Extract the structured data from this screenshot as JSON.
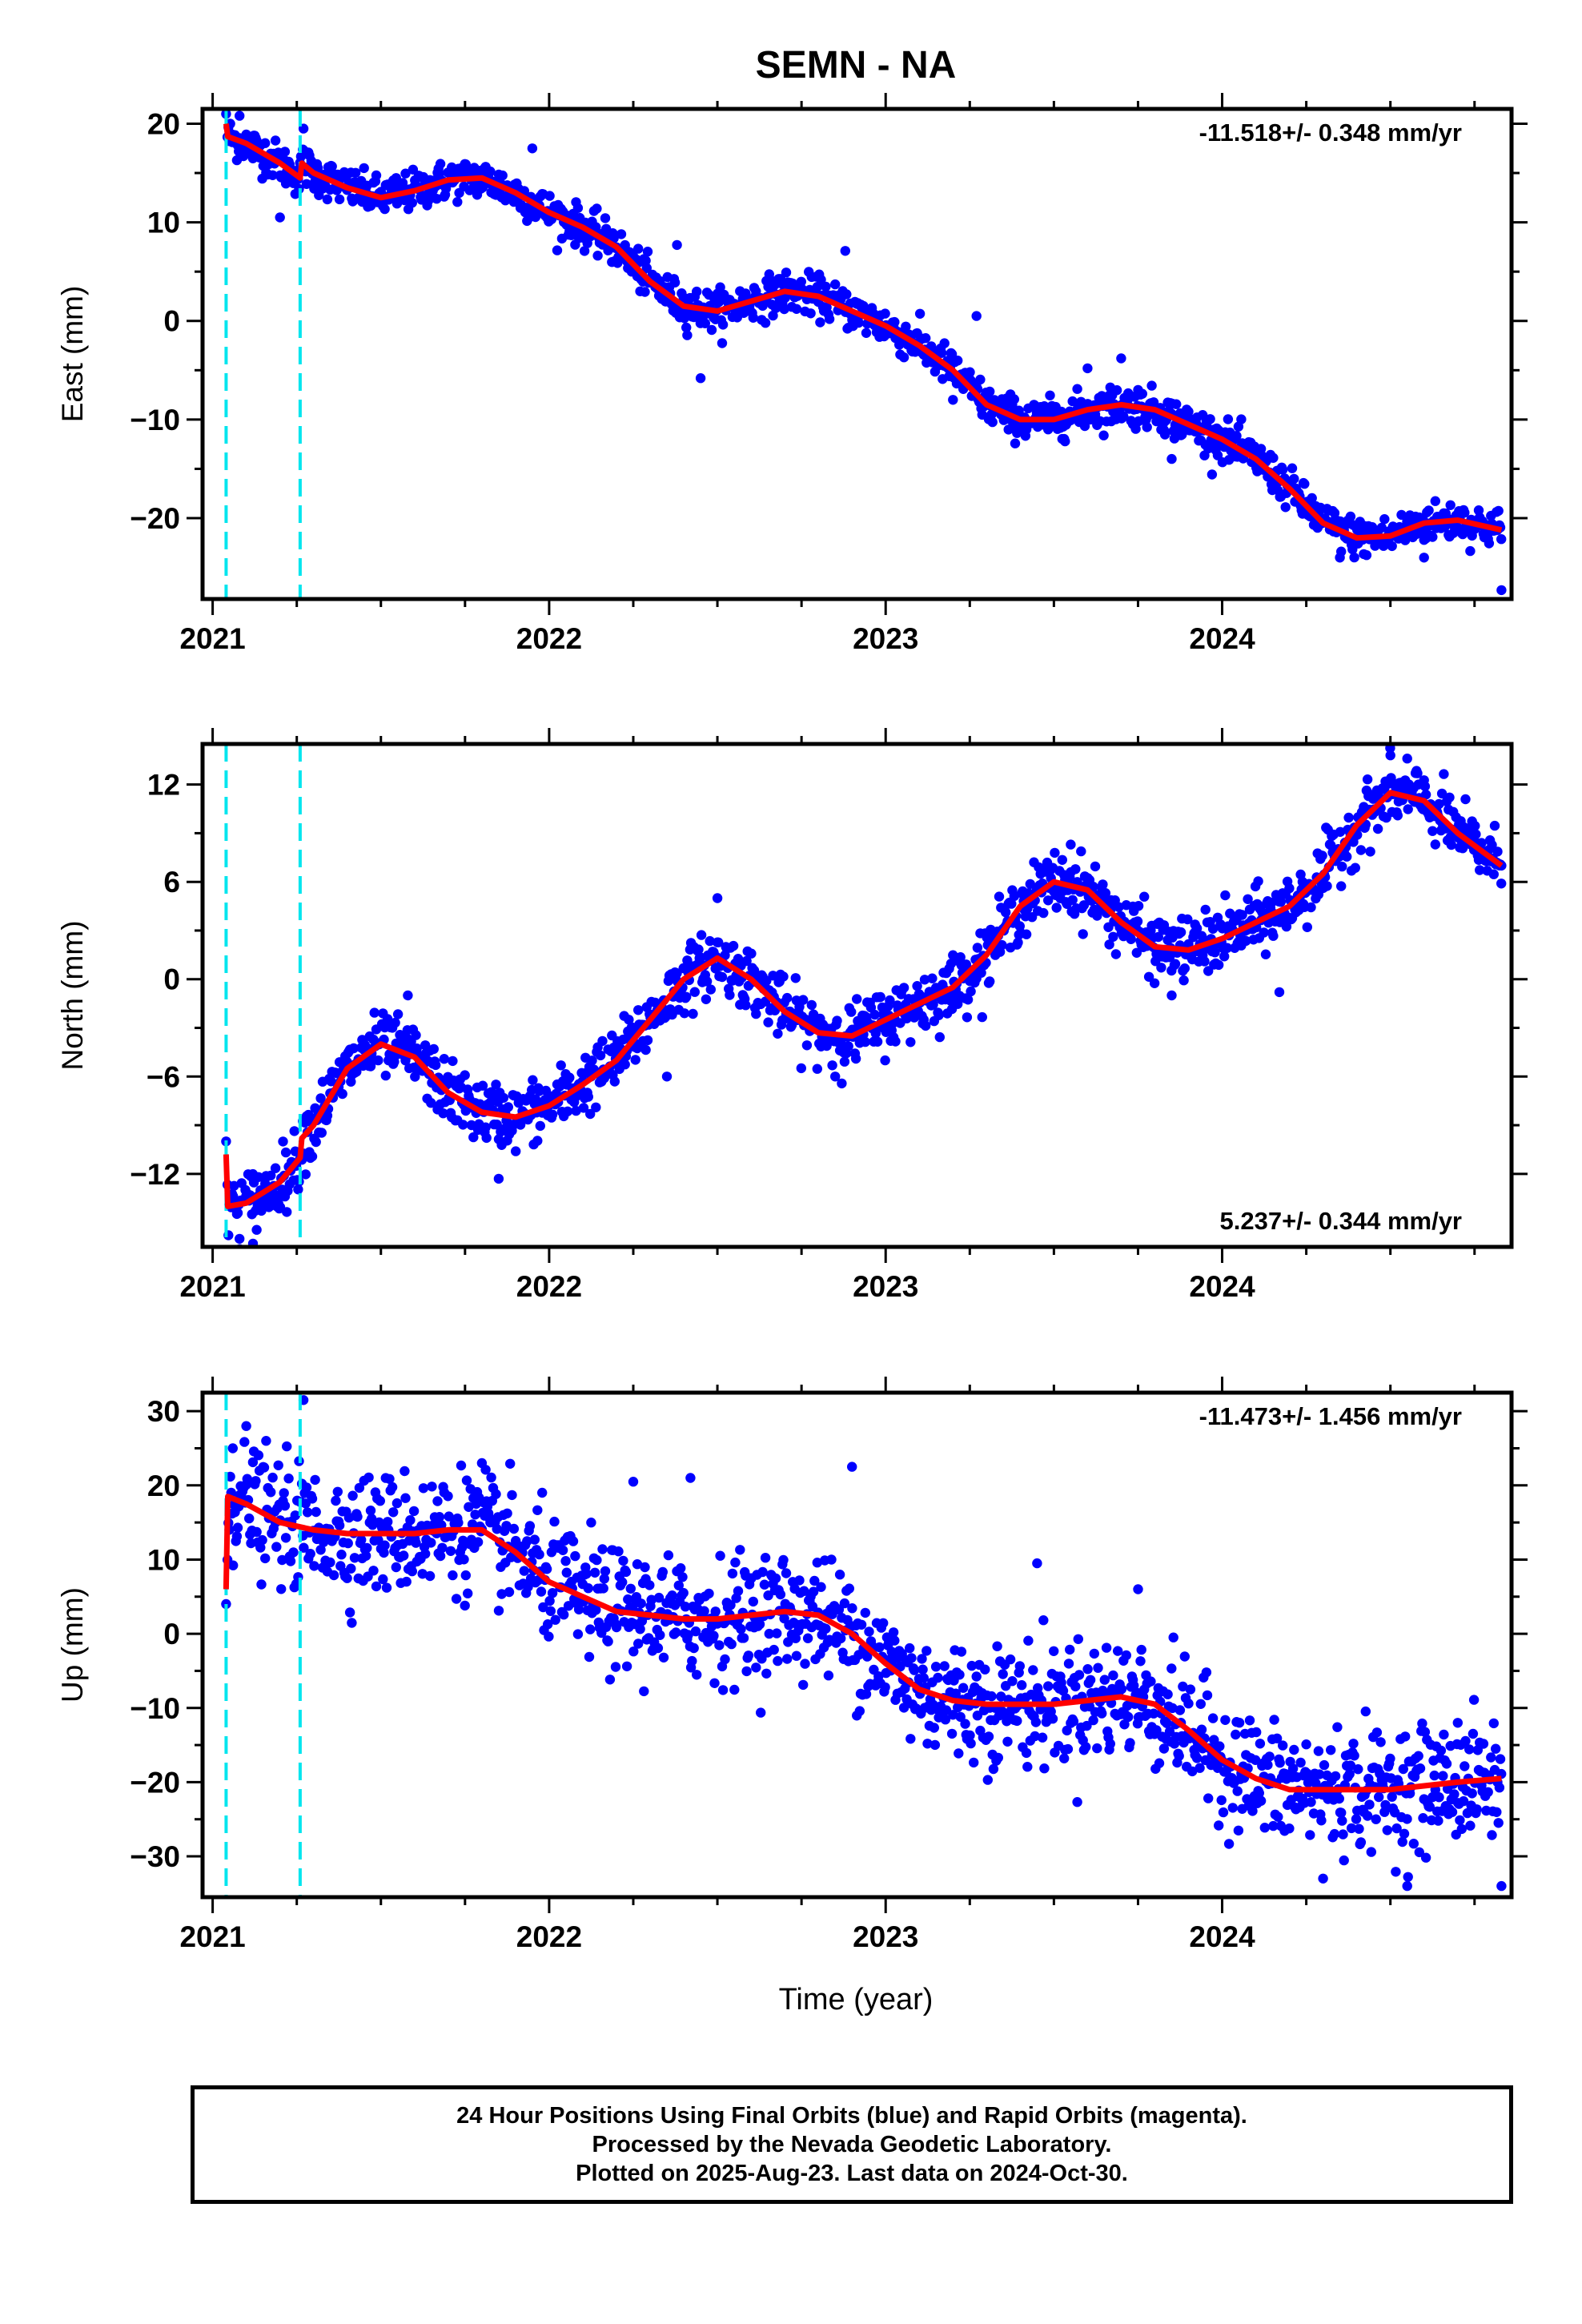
{
  "title": "SEMN - NA",
  "xlabel": "Time (year)",
  "footer": {
    "line1": "24 Hour Positions Using Final Orbits (blue) and Rapid Orbits (magenta).",
    "line2": "Processed by the Nevada Geodetic Laboratory.",
    "line3": "Plotted on 2025-Aug-23. Last data on 2024-Oct-30."
  },
  "colors": {
    "points": "#0000ff",
    "fit": "#ff0000",
    "events": "#00e5ee",
    "frame": "#000000"
  },
  "chart_data": [
    {
      "type": "scatter",
      "ylabel": "East (mm)",
      "rate": "-11.518+/- 0.348 mm/yr",
      "rate_position": "top-right",
      "xlim": [
        2020.97,
        2024.86
      ],
      "ylim": [
        -28.2,
        21.5
      ],
      "xticks": [
        2021,
        2022,
        2023,
        2024
      ],
      "xtick_labels": [
        "2021",
        "2022",
        "2023",
        "2024"
      ],
      "yticks": [
        -20,
        -10,
        0,
        10,
        20
      ],
      "ytick_labels": [
        "−20",
        "−10",
        "0",
        "10",
        "20"
      ],
      "events": [
        2021.04,
        2021.26
      ],
      "fit_curve": [
        [
          2021.04,
          20.0
        ],
        [
          2021.045,
          18.7
        ],
        [
          2021.1,
          18.0
        ],
        [
          2021.2,
          16.0
        ],
        [
          2021.26,
          14.5
        ],
        [
          2021.265,
          16.0
        ],
        [
          2021.3,
          15.0
        ],
        [
          2021.4,
          13.5
        ],
        [
          2021.5,
          12.5
        ],
        [
          2021.6,
          13.2
        ],
        [
          2021.7,
          14.3
        ],
        [
          2021.8,
          14.5
        ],
        [
          2021.9,
          13.0
        ],
        [
          2022.0,
          11.0
        ],
        [
          2022.1,
          9.5
        ],
        [
          2022.2,
          7.5
        ],
        [
          2022.3,
          4.0
        ],
        [
          2022.4,
          1.5
        ],
        [
          2022.5,
          1.0
        ],
        [
          2022.6,
          2.0
        ],
        [
          2022.7,
          3.0
        ],
        [
          2022.8,
          2.5
        ],
        [
          2022.9,
          1.0
        ],
        [
          2023.0,
          -0.5
        ],
        [
          2023.1,
          -2.5
        ],
        [
          2023.2,
          -5.0
        ],
        [
          2023.3,
          -8.5
        ],
        [
          2023.4,
          -10.0
        ],
        [
          2023.5,
          -10.0
        ],
        [
          2023.6,
          -9.0
        ],
        [
          2023.7,
          -8.5
        ],
        [
          2023.8,
          -9.0
        ],
        [
          2023.9,
          -10.5
        ],
        [
          2024.0,
          -12.0
        ],
        [
          2024.1,
          -14.0
        ],
        [
          2024.2,
          -17.0
        ],
        [
          2024.3,
          -20.5
        ],
        [
          2024.4,
          -22.0
        ],
        [
          2024.5,
          -21.8
        ],
        [
          2024.6,
          -20.5
        ],
        [
          2024.7,
          -20.2
        ],
        [
          2024.83,
          -21.2
        ]
      ],
      "outliers": [
        [
          2021.04,
          21.0
        ],
        [
          2021.08,
          20.8
        ],
        [
          2021.2,
          10.5
        ],
        [
          2021.27,
          19.5
        ],
        [
          2021.95,
          17.5
        ],
        [
          2022.38,
          7.7
        ],
        [
          2022.45,
          -5.8
        ],
        [
          2022.88,
          7.1
        ],
        [
          2023.27,
          0.5
        ],
        [
          2023.2,
          -8.0
        ],
        [
          2023.6,
          -4.8
        ],
        [
          2023.7,
          -3.8
        ],
        [
          2023.75,
          -7.0
        ],
        [
          2023.85,
          -14.0
        ],
        [
          2024.35,
          -24.0
        ],
        [
          2024.6,
          -24.0
        ],
        [
          2024.83,
          -27.3
        ]
      ],
      "scatter_sd": 1.0,
      "scatter_step": 0.0028
    },
    {
      "type": "scatter",
      "ylabel": "North (mm)",
      "rate": "5.237+/- 0.344 mm/yr",
      "rate_position": "bottom-right",
      "xlim": [
        2020.97,
        2024.86
      ],
      "ylim": [
        -16.5,
        14.5
      ],
      "xticks": [
        2021,
        2022,
        2023,
        2024
      ],
      "xtick_labels": [
        "2021",
        "2022",
        "2023",
        "2024"
      ],
      "yticks": [
        -12,
        -6,
        0,
        6,
        12
      ],
      "ytick_labels": [
        "−12",
        "−6",
        "0",
        "6",
        "12"
      ],
      "events": [
        2021.04,
        2021.26
      ],
      "fit_curve": [
        [
          2021.04,
          -10.8
        ],
        [
          2021.045,
          -14.0
        ],
        [
          2021.1,
          -13.8
        ],
        [
          2021.2,
          -12.5
        ],
        [
          2021.26,
          -11.0
        ],
        [
          2021.265,
          -9.8
        ],
        [
          2021.3,
          -9.0
        ],
        [
          2021.4,
          -5.5
        ],
        [
          2021.5,
          -4.0
        ],
        [
          2021.6,
          -4.8
        ],
        [
          2021.7,
          -7.0
        ],
        [
          2021.8,
          -8.2
        ],
        [
          2021.9,
          -8.5
        ],
        [
          2022.0,
          -7.8
        ],
        [
          2022.1,
          -6.5
        ],
        [
          2022.2,
          -5.0
        ],
        [
          2022.3,
          -2.5
        ],
        [
          2022.4,
          0.0
        ],
        [
          2022.5,
          1.3
        ],
        [
          2022.6,
          0.0
        ],
        [
          2022.7,
          -2.0
        ],
        [
          2022.8,
          -3.3
        ],
        [
          2022.9,
          -3.5
        ],
        [
          2023.0,
          -2.5
        ],
        [
          2023.1,
          -1.5
        ],
        [
          2023.2,
          -0.5
        ],
        [
          2023.3,
          1.5
        ],
        [
          2023.4,
          4.5
        ],
        [
          2023.5,
          6.0
        ],
        [
          2023.6,
          5.5
        ],
        [
          2023.7,
          3.5
        ],
        [
          2023.8,
          2.0
        ],
        [
          2023.9,
          1.8
        ],
        [
          2024.0,
          2.5
        ],
        [
          2024.1,
          3.5
        ],
        [
          2024.2,
          4.5
        ],
        [
          2024.3,
          6.5
        ],
        [
          2024.4,
          9.5
        ],
        [
          2024.5,
          11.5
        ],
        [
          2024.6,
          11.0
        ],
        [
          2024.7,
          9.0
        ],
        [
          2024.83,
          7.0
        ]
      ],
      "outliers": [
        [
          2021.04,
          -10.0
        ],
        [
          2021.08,
          -16.0
        ],
        [
          2021.12,
          -16.3
        ],
        [
          2021.58,
          -1.0
        ],
        [
          2021.85,
          -12.3
        ],
        [
          2022.35,
          -6.0
        ],
        [
          2022.5,
          5.0
        ],
        [
          2022.85,
          -6.0
        ],
        [
          2023.55,
          8.3
        ],
        [
          2023.85,
          -1.0
        ],
        [
          2024.17,
          -0.8
        ],
        [
          2024.5,
          13.8
        ],
        [
          2024.55,
          13.6
        ],
        [
          2024.83,
          7.0
        ]
      ],
      "scatter_sd": 0.95,
      "scatter_step": 0.0028
    },
    {
      "type": "scatter",
      "ylabel": "Up (mm)",
      "rate": "-11.473+/- 1.456 mm/yr",
      "rate_position": "top-right",
      "xlim": [
        2020.97,
        2024.86
      ],
      "ylim": [
        -35.5,
        32.5
      ],
      "xticks": [
        2021,
        2022,
        2023,
        2024
      ],
      "xtick_labels": [
        "2021",
        "2022",
        "2023",
        "2024"
      ],
      "yticks": [
        -30,
        -20,
        -10,
        0,
        10,
        20,
        30
      ],
      "ytick_labels": [
        "−30",
        "−20",
        "−10",
        "0",
        "10",
        "20",
        "30"
      ],
      "events": [
        2021.04,
        2021.26
      ],
      "fit_curve": [
        [
          2021.04,
          6.0
        ],
        [
          2021.045,
          18.5
        ],
        [
          2021.1,
          17.5
        ],
        [
          2021.2,
          15.0
        ],
        [
          2021.3,
          14.0
        ],
        [
          2021.4,
          13.5
        ],
        [
          2021.5,
          13.5
        ],
        [
          2021.6,
          13.5
        ],
        [
          2021.7,
          14.0
        ],
        [
          2021.8,
          14.0
        ],
        [
          2021.9,
          11.0
        ],
        [
          2022.0,
          7.0
        ],
        [
          2022.1,
          5.0
        ],
        [
          2022.2,
          3.0
        ],
        [
          2022.3,
          2.5
        ],
        [
          2022.4,
          2.0
        ],
        [
          2022.5,
          2.0
        ],
        [
          2022.6,
          2.5
        ],
        [
          2022.7,
          3.0
        ],
        [
          2022.8,
          2.5
        ],
        [
          2022.9,
          0.0
        ],
        [
          2023.0,
          -4.0
        ],
        [
          2023.1,
          -7.5
        ],
        [
          2023.2,
          -9.0
        ],
        [
          2023.3,
          -9.5
        ],
        [
          2023.4,
          -9.5
        ],
        [
          2023.5,
          -9.5
        ],
        [
          2023.6,
          -9.0
        ],
        [
          2023.7,
          -8.5
        ],
        [
          2023.8,
          -9.5
        ],
        [
          2023.9,
          -13.0
        ],
        [
          2024.0,
          -17.0
        ],
        [
          2024.1,
          -19.5
        ],
        [
          2024.2,
          -21.0
        ],
        [
          2024.3,
          -21.0
        ],
        [
          2024.4,
          -21.0
        ],
        [
          2024.5,
          -21.0
        ],
        [
          2024.6,
          -20.5
        ],
        [
          2024.7,
          -20.0
        ],
        [
          2024.83,
          -19.5
        ]
      ],
      "outliers": [
        [
          2021.04,
          4.0
        ],
        [
          2021.06,
          25.0
        ],
        [
          2021.1,
          28.0
        ],
        [
          2021.27,
          31.5
        ],
        [
          2021.8,
          23.0
        ],
        [
          2022.25,
          20.5
        ],
        [
          2022.42,
          21.0
        ],
        [
          2022.9,
          22.5
        ],
        [
          2023.45,
          9.5
        ],
        [
          2023.75,
          6.0
        ],
        [
          2024.3,
          -33.0
        ],
        [
          2024.55,
          -34.0
        ],
        [
          2024.7,
          -12.0
        ],
        [
          2024.83,
          -34.0
        ]
      ],
      "scatter_sd": 4.0,
      "scatter_step": 0.0028
    }
  ]
}
